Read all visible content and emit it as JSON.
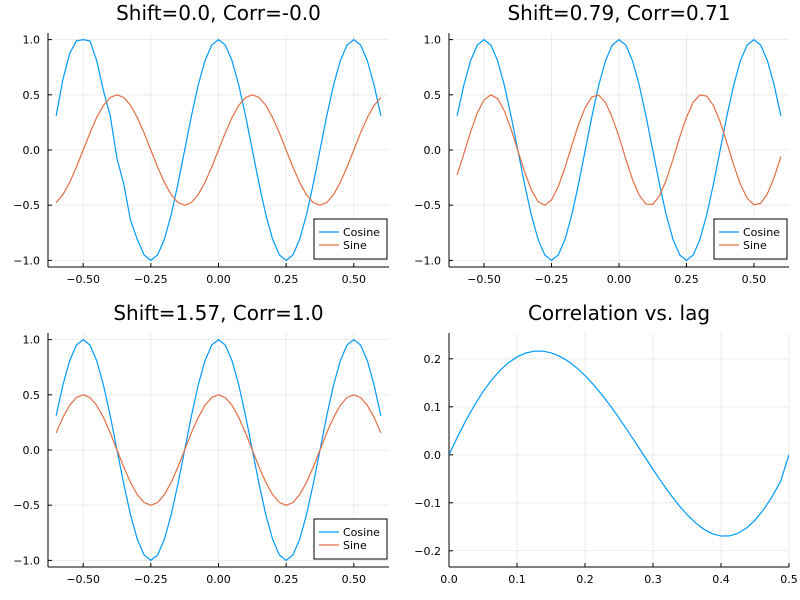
{
  "chart_data": [
    {
      "type": "line",
      "title": "Shift=0.0, Corr=-0.0",
      "xlabel": "",
      "ylabel": "",
      "xlim": [
        -0.6,
        0.6
      ],
      "ylim": [
        -1.0,
        1.0
      ],
      "xticks": [
        -0.5,
        -0.25,
        0.0,
        0.25,
        0.5
      ],
      "xtick_labels": [
        "−0.50",
        "−0.25",
        "0.00",
        "0.25",
        "0.50"
      ],
      "yticks": [
        -1.0,
        -0.5,
        0.0,
        0.5,
        1.0
      ],
      "ytick_labels": [
        "−1.0",
        "−0.5",
        "0.0",
        "0.5",
        "1.0"
      ],
      "grid": true,
      "legend": "bottom-right",
      "series": [
        {
          "name": "Cosine",
          "color": "#009AFA",
          "x": [
            -0.6,
            -0.575,
            -0.55,
            -0.525,
            -0.5,
            -0.475,
            -0.45,
            -0.425,
            -0.4,
            -0.375,
            -0.35,
            -0.325,
            -0.3,
            -0.275,
            -0.25,
            -0.225,
            -0.2,
            -0.175,
            -0.15,
            -0.125,
            -0.1,
            -0.075,
            -0.05,
            -0.025,
            0.0,
            0.025,
            0.05,
            0.075,
            0.1,
            0.125,
            0.15,
            0.175,
            0.2,
            0.225,
            0.25,
            0.275,
            0.3,
            0.325,
            0.35,
            0.375,
            0.4,
            0.425,
            0.45,
            0.475,
            0.5,
            0.525,
            0.55,
            0.575,
            0.6
          ],
          "y": [
            0.309,
            0.637,
            0.876,
            0.988,
            1.0,
            0.988,
            0.809,
            0.536,
            0.309,
            -0.078,
            -0.309,
            -0.637,
            -0.809,
            -0.951,
            -1.0,
            -0.951,
            -0.809,
            -0.588,
            -0.309,
            0.0,
            0.309,
            0.588,
            0.809,
            0.951,
            1.0,
            0.951,
            0.809,
            0.588,
            0.309,
            0.0,
            -0.309,
            -0.588,
            -0.809,
            -0.951,
            -1.0,
            -0.951,
            -0.809,
            -0.588,
            -0.309,
            0.0,
            0.309,
            0.588,
            0.809,
            0.951,
            1.0,
            0.951,
            0.809,
            0.588,
            0.309
          ]
        },
        {
          "name": "Sine",
          "color": "#E26F46",
          "x": [
            -0.6,
            -0.575,
            -0.55,
            -0.525,
            -0.5,
            -0.475,
            -0.45,
            -0.425,
            -0.4,
            -0.375,
            -0.35,
            -0.325,
            -0.3,
            -0.275,
            -0.25,
            -0.225,
            -0.2,
            -0.175,
            -0.15,
            -0.125,
            -0.1,
            -0.075,
            -0.05,
            -0.025,
            0.0,
            0.025,
            0.05,
            0.075,
            0.1,
            0.125,
            0.15,
            0.175,
            0.2,
            0.225,
            0.25,
            0.275,
            0.3,
            0.325,
            0.35,
            0.375,
            0.4,
            0.425,
            0.45,
            0.475,
            0.5,
            0.525,
            0.55,
            0.575,
            0.6
          ],
          "y": [
            -0.476,
            -0.405,
            -0.294,
            -0.155,
            0.0,
            0.155,
            0.294,
            0.405,
            0.476,
            0.5,
            0.476,
            0.405,
            0.294,
            0.155,
            0.0,
            -0.155,
            -0.294,
            -0.405,
            -0.476,
            -0.5,
            -0.476,
            -0.405,
            -0.294,
            -0.155,
            0.0,
            0.155,
            0.294,
            0.405,
            0.476,
            0.5,
            0.476,
            0.405,
            0.294,
            0.155,
            0.0,
            -0.155,
            -0.294,
            -0.405,
            -0.476,
            -0.5,
            -0.476,
            -0.405,
            -0.294,
            -0.155,
            0.0,
            0.155,
            0.294,
            0.405,
            0.476
          ]
        }
      ]
    },
    {
      "type": "line",
      "title": "Shift=0.79, Corr=0.71",
      "xlabel": "",
      "ylabel": "",
      "xlim": [
        -0.6,
        0.6
      ],
      "ylim": [
        -1.0,
        1.0
      ],
      "xticks": [
        -0.5,
        -0.25,
        0.0,
        0.25,
        0.5
      ],
      "xtick_labels": [
        "−0.50",
        "−0.25",
        "0.00",
        "0.25",
        "0.50"
      ],
      "yticks": [
        -1.0,
        -0.5,
        0.0,
        0.5,
        1.0
      ],
      "ytick_labels": [
        "−1.0",
        "−0.5",
        "0.0",
        "0.5",
        "1.0"
      ],
      "grid": true,
      "legend": "bottom-right",
      "series": [
        {
          "name": "Cosine",
          "color": "#009AFA",
          "x": [
            -0.6,
            -0.575,
            -0.55,
            -0.525,
            -0.5,
            -0.475,
            -0.45,
            -0.425,
            -0.4,
            -0.375,
            -0.35,
            -0.325,
            -0.3,
            -0.275,
            -0.25,
            -0.225,
            -0.2,
            -0.175,
            -0.15,
            -0.125,
            -0.1,
            -0.075,
            -0.05,
            -0.025,
            0.0,
            0.025,
            0.05,
            0.075,
            0.1,
            0.125,
            0.15,
            0.175,
            0.2,
            0.225,
            0.25,
            0.275,
            0.3,
            0.325,
            0.35,
            0.375,
            0.4,
            0.425,
            0.45,
            0.475,
            0.5,
            0.525,
            0.55,
            0.575,
            0.6
          ],
          "y": [
            0.309,
            0.588,
            0.809,
            0.951,
            1.0,
            0.951,
            0.809,
            0.588,
            0.309,
            0.0,
            -0.309,
            -0.588,
            -0.809,
            -0.951,
            -1.0,
            -0.951,
            -0.809,
            -0.588,
            -0.309,
            0.0,
            0.309,
            0.588,
            0.809,
            0.951,
            1.0,
            0.951,
            0.809,
            0.588,
            0.309,
            0.0,
            -0.309,
            -0.588,
            -0.809,
            -0.951,
            -1.0,
            -0.951,
            -0.809,
            -0.588,
            -0.309,
            0.0,
            0.309,
            0.588,
            0.809,
            0.951,
            1.0,
            0.951,
            0.809,
            0.588,
            0.309
          ]
        },
        {
          "name": "Sine",
          "color": "#E26F46",
          "x": [
            -0.6,
            -0.575,
            -0.55,
            -0.525,
            -0.5,
            -0.475,
            -0.45,
            -0.425,
            -0.4,
            -0.375,
            -0.35,
            -0.325,
            -0.3,
            -0.275,
            -0.25,
            -0.225,
            -0.2,
            -0.175,
            -0.15,
            -0.125,
            -0.1,
            -0.075,
            -0.05,
            -0.025,
            0.0,
            0.025,
            0.05,
            0.075,
            0.1,
            0.125,
            0.15,
            0.175,
            0.2,
            0.225,
            0.25,
            0.275,
            0.3,
            0.325,
            0.35,
            0.375,
            0.4,
            0.425,
            0.45,
            0.475,
            0.5,
            0.525,
            0.55,
            0.575,
            0.6
          ],
          "y": [
            -0.227,
            -0.034,
            0.164,
            0.336,
            0.454,
            0.5,
            0.466,
            0.356,
            0.19,
            -0.004,
            -0.195,
            -0.361,
            -0.468,
            -0.5,
            -0.452,
            -0.331,
            -0.158,
            0.039,
            0.232,
            0.386,
            0.482,
            0.497,
            0.43,
            0.296,
            0.12,
            -0.08,
            -0.267,
            -0.41,
            -0.49,
            -0.494,
            -0.417,
            -0.273,
            -0.085,
            0.116,
            0.297,
            0.433,
            0.499,
            0.488,
            0.403,
            0.254,
            0.064,
            -0.135,
            -0.31,
            -0.436,
            -0.497,
            -0.483,
            -0.396,
            -0.248,
            -0.059
          ]
        }
      ]
    },
    {
      "type": "line",
      "title": "Shift=1.57, Corr=1.0",
      "xlabel": "",
      "ylabel": "",
      "xlim": [
        -0.6,
        0.6
      ],
      "ylim": [
        -1.0,
        1.0
      ],
      "xticks": [
        -0.5,
        -0.25,
        0.0,
        0.25,
        0.5
      ],
      "xtick_labels": [
        "−0.50",
        "−0.25",
        "0.00",
        "0.25",
        "0.50"
      ],
      "yticks": [
        -1.0,
        -0.5,
        0.0,
        0.5,
        1.0
      ],
      "ytick_labels": [
        "−1.0",
        "−0.5",
        "0.0",
        "0.5",
        "1.0"
      ],
      "grid": true,
      "legend": "bottom-right",
      "series": [
        {
          "name": "Cosine",
          "color": "#009AFA",
          "x": [
            -0.6,
            -0.575,
            -0.55,
            -0.525,
            -0.5,
            -0.475,
            -0.45,
            -0.425,
            -0.4,
            -0.375,
            -0.35,
            -0.325,
            -0.3,
            -0.275,
            -0.25,
            -0.225,
            -0.2,
            -0.175,
            -0.15,
            -0.125,
            -0.1,
            -0.075,
            -0.05,
            -0.025,
            0.0,
            0.025,
            0.05,
            0.075,
            0.1,
            0.125,
            0.15,
            0.175,
            0.2,
            0.225,
            0.25,
            0.275,
            0.3,
            0.325,
            0.35,
            0.375,
            0.4,
            0.425,
            0.45,
            0.475,
            0.5,
            0.525,
            0.55,
            0.575,
            0.6
          ],
          "y": [
            0.309,
            0.588,
            0.809,
            0.951,
            1.0,
            0.951,
            0.809,
            0.588,
            0.309,
            0.0,
            -0.309,
            -0.588,
            -0.809,
            -0.951,
            -1.0,
            -0.951,
            -0.809,
            -0.588,
            -0.309,
            0.0,
            0.309,
            0.588,
            0.809,
            0.951,
            1.0,
            0.951,
            0.809,
            0.588,
            0.309,
            0.0,
            -0.309,
            -0.588,
            -0.809,
            -0.951,
            -1.0,
            -0.951,
            -0.809,
            -0.588,
            -0.309,
            0.0,
            0.309,
            0.588,
            0.809,
            0.951,
            1.0,
            0.951,
            0.809,
            0.588,
            0.309
          ]
        },
        {
          "name": "Sine",
          "color": "#E26F46",
          "x": [
            -0.6,
            -0.575,
            -0.55,
            -0.525,
            -0.5,
            -0.475,
            -0.45,
            -0.425,
            -0.4,
            -0.375,
            -0.35,
            -0.325,
            -0.3,
            -0.275,
            -0.25,
            -0.225,
            -0.2,
            -0.175,
            -0.15,
            -0.125,
            -0.1,
            -0.075,
            -0.05,
            -0.025,
            0.0,
            0.025,
            0.05,
            0.075,
            0.1,
            0.125,
            0.15,
            0.175,
            0.2,
            0.225,
            0.25,
            0.275,
            0.3,
            0.325,
            0.35,
            0.375,
            0.4,
            0.425,
            0.45,
            0.475,
            0.5,
            0.525,
            0.55,
            0.575,
            0.6
          ],
          "y": [
            0.155,
            0.294,
            0.405,
            0.476,
            0.5,
            0.476,
            0.405,
            0.294,
            0.155,
            0.0,
            -0.155,
            -0.294,
            -0.405,
            -0.476,
            -0.5,
            -0.476,
            -0.405,
            -0.294,
            -0.155,
            0.0,
            0.155,
            0.294,
            0.405,
            0.476,
            0.5,
            0.476,
            0.405,
            0.294,
            0.155,
            0.0,
            -0.155,
            -0.294,
            -0.405,
            -0.476,
            -0.5,
            -0.476,
            -0.405,
            -0.294,
            -0.155,
            0.0,
            0.155,
            0.294,
            0.405,
            0.476,
            0.5,
            0.476,
            0.405,
            0.294,
            0.155
          ]
        }
      ]
    },
    {
      "type": "line",
      "title": "Correlation vs. lag",
      "xlabel": "",
      "ylabel": "",
      "xlim": [
        0.0,
        0.5
      ],
      "ylim": [
        -0.22,
        0.24
      ],
      "xticks": [
        0.0,
        0.1,
        0.2,
        0.3,
        0.4,
        0.5
      ],
      "xtick_labels": [
        "0.0",
        "0.1",
        "0.2",
        "0.3",
        "0.4",
        "0.5"
      ],
      "yticks": [
        -0.2,
        -0.1,
        0.0,
        0.1,
        0.2
      ],
      "ytick_labels": [
        "−0.2",
        "−0.1",
        "0.0",
        "0.1",
        "0.2"
      ],
      "grid": true,
      "legend": "none",
      "series": [
        {
          "color": "#009AFA",
          "x": [
            0.0,
            0.0125,
            0.025,
            0.0375,
            0.05,
            0.0625,
            0.075,
            0.0875,
            0.1,
            0.1125,
            0.125,
            0.1375,
            0.15,
            0.1625,
            0.175,
            0.1875,
            0.2,
            0.2125,
            0.225,
            0.2375,
            0.25,
            0.2625,
            0.275,
            0.2875,
            0.3,
            0.3125,
            0.325,
            0.3375,
            0.35,
            0.3625,
            0.375,
            0.3875,
            0.4,
            0.4125,
            0.425,
            0.4375,
            0.45,
            0.4625,
            0.475,
            0.4875,
            0.5
          ],
          "y": [
            0.0,
            0.0372,
            0.0719,
            0.1035,
            0.1315,
            0.1556,
            0.1758,
            0.1919,
            0.2039,
            0.2119,
            0.2159,
            0.2161,
            0.2126,
            0.2055,
            0.1951,
            0.1815,
            0.1651,
            0.1461,
            0.1248,
            0.1016,
            0.0768,
            0.0508,
            0.0239,
            -0.0033,
            -0.0304,
            -0.0566,
            -0.0814,
            -0.1043,
            -0.1246,
            -0.1418,
            -0.1553,
            -0.1646,
            -0.1693,
            -0.169,
            -0.1635,
            -0.1525,
            -0.1362,
            -0.1144,
            -0.0876,
            -0.0558,
            0.0
          ]
        }
      ]
    }
  ]
}
